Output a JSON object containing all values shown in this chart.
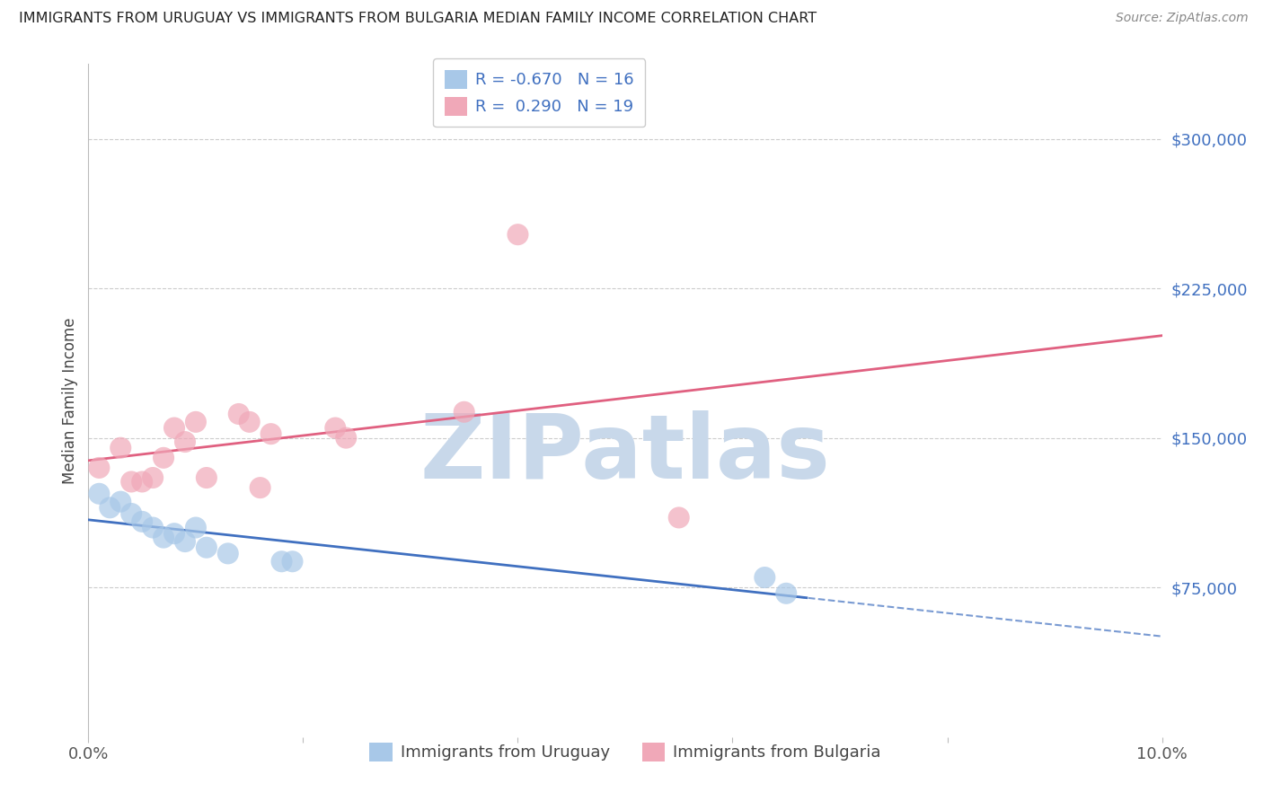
{
  "title": "IMMIGRANTS FROM URUGUAY VS IMMIGRANTS FROM BULGARIA MEDIAN FAMILY INCOME CORRELATION CHART",
  "source": "Source: ZipAtlas.com",
  "ylabel": "Median Family Income",
  "xlim": [
    0.0,
    0.1
  ],
  "ylim": [
    0,
    337500
  ],
  "yticks": [
    75000,
    150000,
    225000,
    300000
  ],
  "ytick_labels": [
    "$75,000",
    "$150,000",
    "$225,000",
    "$300,000"
  ],
  "xticks": [
    0.0,
    0.02,
    0.04,
    0.06,
    0.08,
    0.1
  ],
  "xtick_labels": [
    "0.0%",
    "",
    "",
    "",
    "",
    "10.0%"
  ],
  "legend_r1": "R = -0.670",
  "legend_n1": "N = 16",
  "legend_r2": "R =  0.290",
  "legend_n2": "N = 19",
  "uruguay_color": "#A8C8E8",
  "bulgaria_color": "#F0A8B8",
  "uruguay_line_color": "#4070C0",
  "bulgaria_line_color": "#E06080",
  "watermark_text": "ZIPatlas",
  "watermark_color": "#C8D8EA",
  "uruguay_x": [
    0.001,
    0.002,
    0.003,
    0.004,
    0.005,
    0.006,
    0.007,
    0.008,
    0.009,
    0.01,
    0.011,
    0.013,
    0.018,
    0.019,
    0.063,
    0.065
  ],
  "uruguay_y": [
    122000,
    115000,
    118000,
    112000,
    108000,
    105000,
    100000,
    102000,
    98000,
    105000,
    95000,
    92000,
    88000,
    88000,
    80000,
    72000
  ],
  "bulgaria_x": [
    0.001,
    0.003,
    0.004,
    0.005,
    0.006,
    0.007,
    0.008,
    0.009,
    0.01,
    0.011,
    0.014,
    0.015,
    0.016,
    0.017,
    0.023,
    0.024,
    0.035,
    0.04,
    0.055
  ],
  "bulgaria_y": [
    135000,
    145000,
    128000,
    128000,
    130000,
    140000,
    155000,
    148000,
    158000,
    130000,
    162000,
    158000,
    125000,
    152000,
    155000,
    150000,
    163000,
    252000,
    110000
  ],
  "background_color": "#FFFFFF",
  "plot_background": "#FFFFFF",
  "grid_color": "#CCCCCC",
  "legend1_label": "Immigrants from Uruguay",
  "legend2_label": "Immigrants from Bulgaria"
}
